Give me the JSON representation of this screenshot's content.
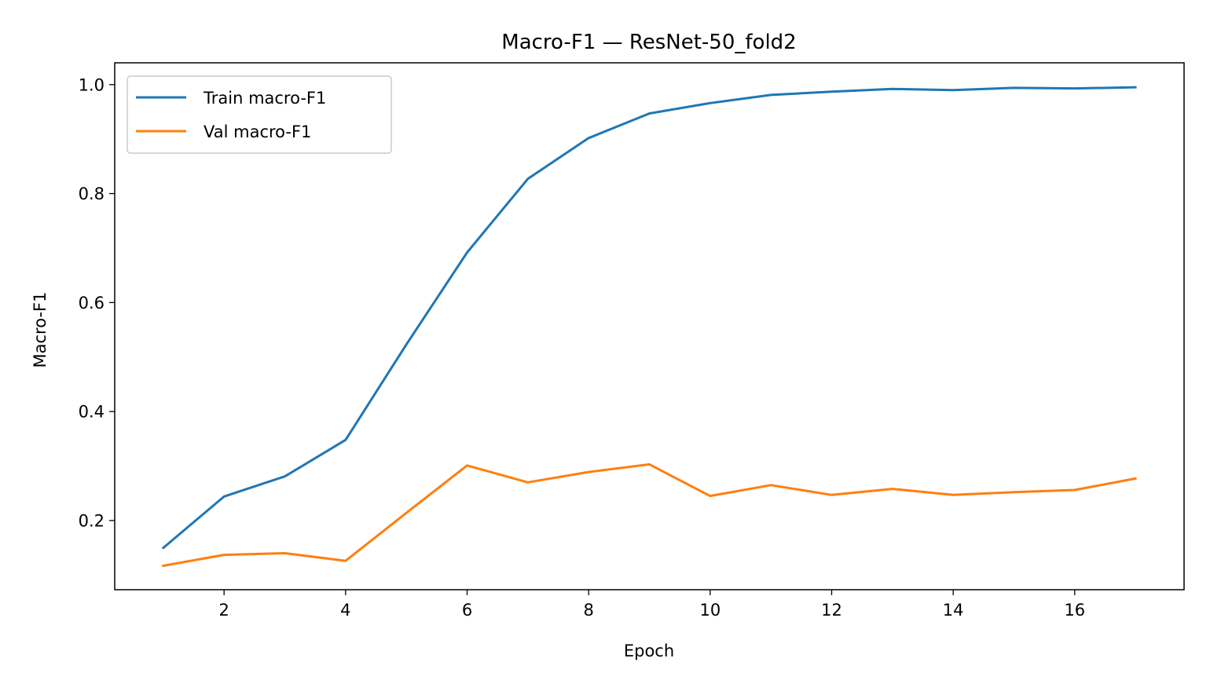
{
  "chart_data": {
    "type": "line",
    "title": "Macro-F1 — ResNet-50_fold2",
    "xlabel": "Epoch",
    "ylabel": "Macro-F1",
    "xlim": [
      0.2,
      17.8
    ],
    "ylim": [
      0.073,
      1.04
    ],
    "xticks": [
      2,
      4,
      6,
      8,
      10,
      12,
      14,
      16
    ],
    "yticks": [
      0.2,
      0.4,
      0.6,
      0.8,
      1.0
    ],
    "ytick_labels": [
      "0.2",
      "0.4",
      "0.6",
      "0.8",
      "1.0"
    ],
    "grid": false,
    "legend_position": "top-left",
    "x": [
      1,
      2,
      3,
      4,
      5,
      6,
      7,
      8,
      9,
      10,
      11,
      12,
      13,
      14,
      15,
      16,
      17
    ],
    "series": [
      {
        "name": "Train macro-F1",
        "color": "#1f77b4",
        "values": [
          0.15,
          0.244,
          0.281,
          0.348,
          0.523,
          0.692,
          0.827,
          0.902,
          0.947,
          0.966,
          0.981,
          0.987,
          0.992,
          0.99,
          0.994,
          0.993,
          0.995
        ]
      },
      {
        "name": "Val macro-F1",
        "color": "#ff7f0e",
        "values": [
          0.117,
          0.137,
          0.14,
          0.126,
          0.214,
          0.301,
          0.27,
          0.289,
          0.303,
          0.245,
          0.265,
          0.247,
          0.258,
          0.247,
          0.252,
          0.256,
          0.277
        ]
      }
    ]
  }
}
